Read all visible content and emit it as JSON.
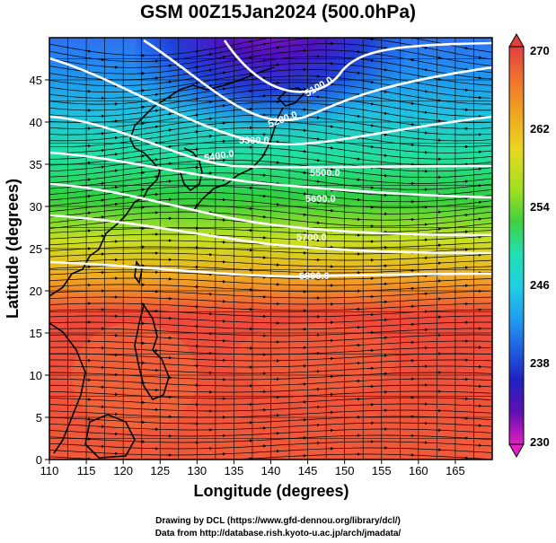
{
  "title": "GSM 00Z15Jan2024 (500.0hPa)",
  "x_axis": {
    "label": "Longitude (degrees)",
    "ticks": [
      "110",
      "115",
      "120",
      "125",
      "130",
      "135",
      "140",
      "145",
      "150",
      "155",
      "160",
      "165"
    ],
    "range": [
      110,
      170
    ]
  },
  "y_axis": {
    "label": "Latitude (degrees)",
    "ticks": [
      "0",
      "5",
      "10",
      "15",
      "20",
      "25",
      "30",
      "35",
      "40",
      "45"
    ],
    "range": [
      0,
      50
    ]
  },
  "colorbar": {
    "labels": [
      "270",
      "262",
      "254",
      "246",
      "238",
      "230"
    ],
    "range": [
      230,
      270
    ],
    "colors": [
      "#e04040",
      "#f07030",
      "#f0a020",
      "#e8d820",
      "#a0e020",
      "#40d040",
      "#20e0b0",
      "#20d0e0",
      "#20a0f0",
      "#2060e0",
      "#2020c0",
      "#6010b0",
      "#a010c0",
      "#e020c0"
    ]
  },
  "contours": {
    "color": "#ffffff",
    "labels": [
      "5100.0",
      "5200.0",
      "5300.0",
      "5400.0",
      "5500.0",
      "5600.0",
      "5700.0",
      "5800.0"
    ]
  },
  "footer": {
    "line1": "Drawing by DCL (https://www.gfd-dennou.org/library/dcl/)",
    "line2": "Data from http://database.rish.kyoto-u.ac.jp/arch/jmadata/"
  }
}
